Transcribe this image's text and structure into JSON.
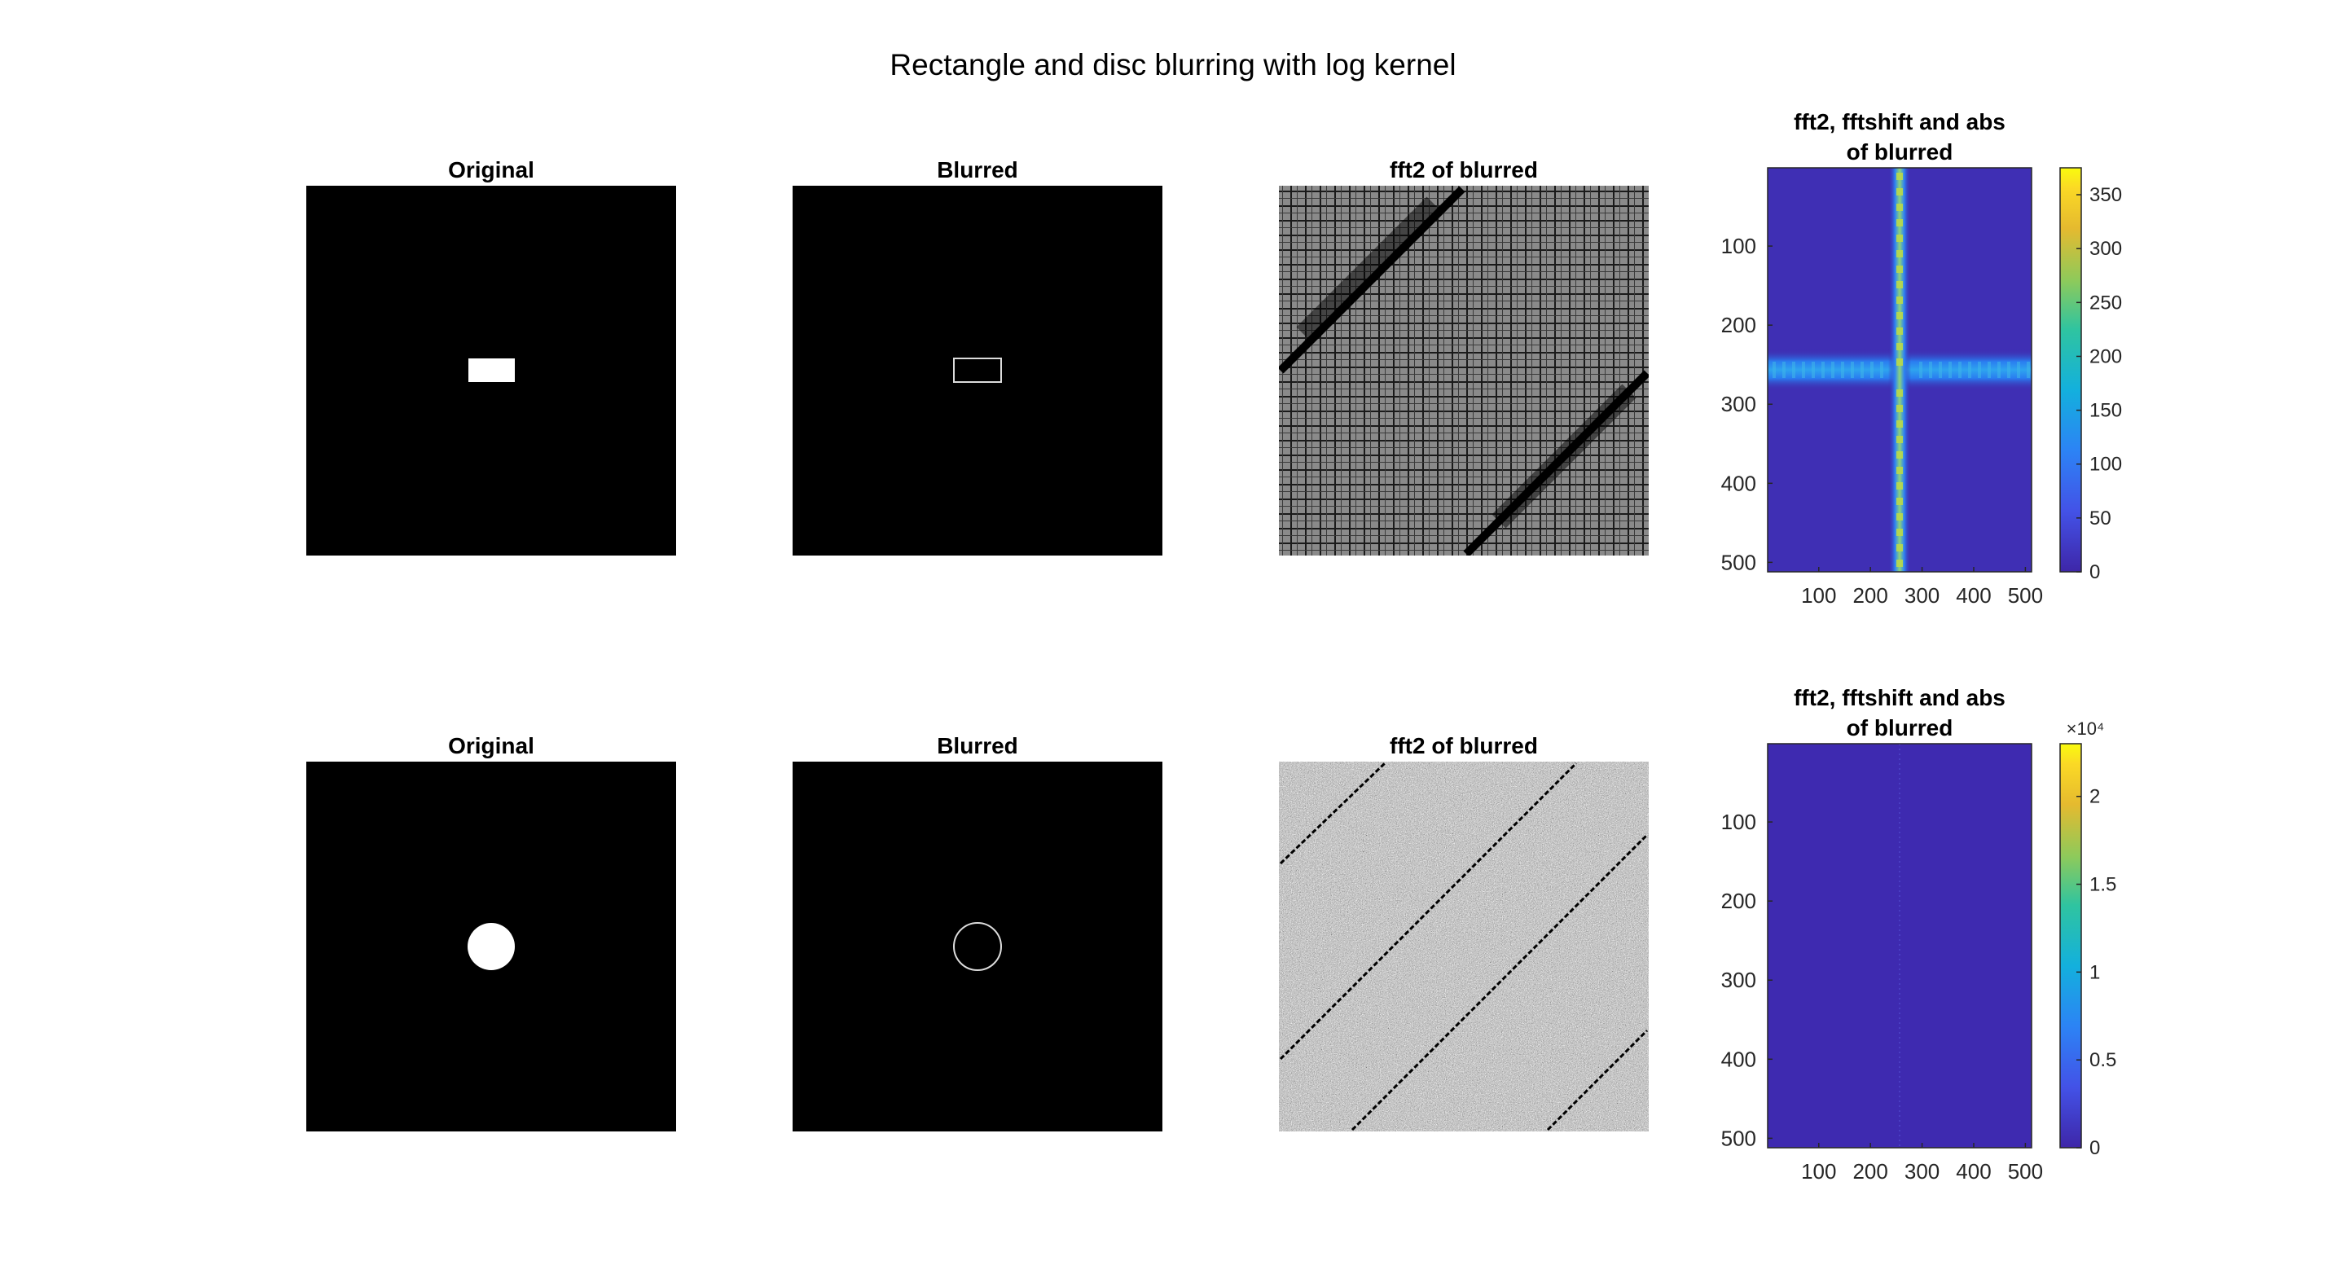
{
  "figure": {
    "title": "Rectangle and disc blurring with log kernel"
  },
  "chart_data": [
    {
      "type": "image",
      "row": 1,
      "title": "Original",
      "shape": "filled-rectangle",
      "colormap": "gray"
    },
    {
      "type": "image",
      "row": 1,
      "title": "Blurred",
      "shape": "rectangle-outline",
      "colormap": "gray"
    },
    {
      "type": "image",
      "row": 1,
      "title": "fft2 of blurred",
      "pattern": "grid-with-diagonal-bands",
      "colormap": "gray"
    },
    {
      "type": "heatmap",
      "row": 1,
      "title": [
        "fft2, fftshift and abs",
        "of blurred"
      ],
      "colormap": "parula",
      "xlim": [
        1,
        512
      ],
      "ylim": [
        1,
        512
      ],
      "xticks": [
        100,
        200,
        300,
        400,
        500
      ],
      "yticks": [
        100,
        200,
        300,
        400,
        500
      ],
      "colorbar": {
        "min": 0,
        "max": 375,
        "ticks": [
          0,
          50,
          100,
          150,
          200,
          250,
          300,
          350
        ],
        "exponent_label": ""
      },
      "structure": "cross"
    },
    {
      "type": "image",
      "row": 2,
      "title": "Original",
      "shape": "filled-disc",
      "colormap": "gray"
    },
    {
      "type": "image",
      "row": 2,
      "title": "Blurred",
      "shape": "circle-outline",
      "colormap": "gray"
    },
    {
      "type": "image",
      "row": 2,
      "title": "fft2 of blurred",
      "pattern": "noise-with-diagonal-lines",
      "colormap": "gray"
    },
    {
      "type": "heatmap",
      "row": 2,
      "title": [
        "fft2, fftshift and abs",
        "of blurred"
      ],
      "colormap": "parula",
      "xlim": [
        1,
        512
      ],
      "ylim": [
        1,
        512
      ],
      "xticks": [
        100,
        200,
        300,
        400,
        500
      ],
      "yticks": [
        100,
        200,
        300,
        400,
        500
      ],
      "colorbar": {
        "min": 0,
        "max": 2.3,
        "ticks": [
          0,
          0.5,
          1,
          1.5,
          2
        ],
        "exponent_label": "×10⁴"
      },
      "structure": "uniform-low"
    }
  ]
}
